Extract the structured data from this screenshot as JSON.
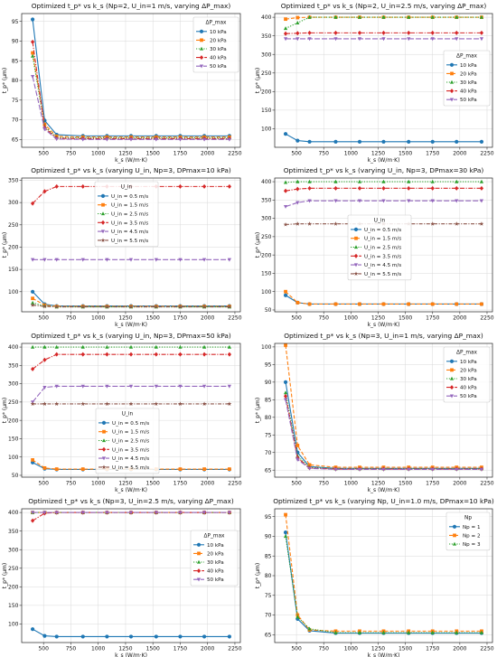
{
  "colors": {
    "blue": "#1f77b4",
    "orange": "#ff7f0e",
    "green": "#2ca02c",
    "red": "#d62728",
    "purple": "#9467bd",
    "brown": "#8c564b"
  },
  "chart_data": [
    {
      "type": "line",
      "title": "Optimized t_p* vs k_s (Np=2, U_in=1 m/s, varying ΔP_max)",
      "xlabel": "k_s (W/m·K)",
      "ylabel": "t_p* (μm)",
      "xlim": [
        300,
        2300
      ],
      "ylim": [
        63,
        97
      ],
      "xticks": [
        250,
        500,
        750,
        1000,
        1250,
        1500,
        1750,
        2000,
        2250
      ],
      "yticks": [
        65,
        70,
        75,
        80,
        85,
        90,
        95
      ],
      "grid": true,
      "legend_title": "ΔP_max",
      "legend_position": "upper-right",
      "x": [
        400,
        510,
        620,
        860,
        1080,
        1300,
        1530,
        1750,
        1970,
        2200
      ],
      "series": [
        {
          "name": "10 kPa",
          "values": [
            95.5,
            69.8,
            66.2,
            65.9,
            65.9,
            65.9,
            65.9,
            65.9,
            65.9,
            65.9
          ]
        },
        {
          "name": "20 kPa",
          "values": [
            87.0,
            68.8,
            65.8,
            65.6,
            65.6,
            65.6,
            65.6,
            65.6,
            65.6,
            65.6
          ]
        },
        {
          "name": "30 kPa",
          "values": [
            86.2,
            68.3,
            65.5,
            65.4,
            65.4,
            65.4,
            65.4,
            65.4,
            65.4,
            65.4
          ]
        },
        {
          "name": "40 kPa",
          "values": [
            89.8,
            68.0,
            65.3,
            65.2,
            65.2,
            65.2,
            65.2,
            65.2,
            65.2,
            65.2
          ]
        },
        {
          "name": "50 kPa",
          "values": [
            81.0,
            67.6,
            65.1,
            65.0,
            65.0,
            65.0,
            65.0,
            65.0,
            65.0,
            65.0
          ]
        }
      ]
    },
    {
      "type": "line",
      "title": "Optimized t_p* vs k_s (Np=2, U_in=2.5 m/s, varying ΔP_max)",
      "xlabel": "k_s (W/m·K)",
      "ylabel": "t_p* (μm)",
      "xlim": [
        300,
        2300
      ],
      "ylim": [
        50,
        410
      ],
      "xticks": [
        250,
        500,
        750,
        1000,
        1250,
        1500,
        1750,
        2000,
        2250
      ],
      "yticks": [
        100,
        150,
        200,
        250,
        300,
        350,
        400
      ],
      "grid": true,
      "legend_title": "ΔP_max",
      "legend_position": "center-right",
      "x": [
        400,
        510,
        620,
        860,
        1080,
        1300,
        1530,
        1750,
        1970,
        2200
      ],
      "series": [
        {
          "name": "10 kPa",
          "values": [
            86,
            68,
            65,
            65,
            65,
            65,
            65,
            65,
            65,
            65
          ]
        },
        {
          "name": "20 kPa",
          "values": [
            395,
            399,
            400,
            400,
            400,
            400,
            400,
            400,
            400,
            400
          ]
        },
        {
          "name": "30 kPa",
          "values": [
            370,
            385,
            400,
            400,
            400,
            400,
            400,
            400,
            400,
            400
          ]
        },
        {
          "name": "40 kPa",
          "values": [
            356,
            357,
            358,
            358,
            358,
            358,
            358,
            358,
            358,
            358
          ]
        },
        {
          "name": "50 kPa",
          "values": [
            342,
            342,
            342,
            342,
            342,
            342,
            342,
            342,
            342,
            342
          ]
        }
      ]
    },
    {
      "type": "line",
      "title": "Optimized t_p* vs k_s (varying U_in, Np=3, DPmax=10 kPa)",
      "xlabel": "k_s (W/m·K)",
      "ylabel": "t_p* (μm)",
      "xlim": [
        300,
        2300
      ],
      "ylim": [
        55,
        355
      ],
      "xticks": [
        250,
        500,
        750,
        1000,
        1250,
        1500,
        1750,
        2000,
        2250
      ],
      "yticks": [
        100,
        150,
        200,
        250,
        300,
        350
      ],
      "grid": true,
      "legend_title": "U_in",
      "legend_position": "upper-left",
      "x": [
        400,
        510,
        620,
        860,
        1080,
        1300,
        1530,
        1750,
        1970,
        2200
      ],
      "series": [
        {
          "name": "U_in = 0.5 m/s",
          "values": [
            100,
            72,
            68,
            68,
            68,
            68,
            68,
            68,
            68,
            68
          ]
        },
        {
          "name": "U_in = 1.5 m/s",
          "values": [
            85,
            70,
            67,
            67,
            67,
            67,
            67,
            67,
            67,
            67
          ]
        },
        {
          "name": "U_in = 2.5 m/s",
          "values": [
            75,
            68,
            66,
            66,
            66,
            66,
            66,
            66,
            66,
            66
          ]
        },
        {
          "name": "U_in = 3.5 m/s",
          "values": [
            298,
            325,
            336,
            336,
            336,
            336,
            336,
            336,
            336,
            336
          ]
        },
        {
          "name": "U_in = 4.5 m/s",
          "values": [
            172,
            172,
            172,
            172,
            172,
            172,
            172,
            172,
            172,
            172
          ]
        },
        {
          "name": "U_in = 5.5 m/s",
          "values": [
            70,
            67,
            66,
            66,
            66,
            66,
            66,
            66,
            66,
            66
          ]
        }
      ]
    },
    {
      "type": "line",
      "title": "Optimized t_p* vs k_s (varying U_in, Np=3, DPmax=30 kPa)",
      "xlabel": "k_s (W/m·K)",
      "ylabel": "t_p* (μm)",
      "xlim": [
        300,
        2300
      ],
      "ylim": [
        45,
        410
      ],
      "xticks": [
        250,
        500,
        750,
        1000,
        1250,
        1500,
        1750,
        2000,
        2250
      ],
      "yticks": [
        50,
        100,
        150,
        200,
        250,
        300,
        350,
        400
      ],
      "grid": true,
      "legend_title": "U_in",
      "legend_position": "center",
      "x": [
        400,
        510,
        620,
        860,
        1080,
        1300,
        1530,
        1750,
        1970,
        2200
      ],
      "series": [
        {
          "name": "U_in = 0.5 m/s",
          "values": [
            90,
            70,
            66,
            66,
            66,
            66,
            66,
            66,
            66,
            66
          ]
        },
        {
          "name": "U_in = 1.5 m/s",
          "values": [
            100,
            70,
            66,
            66,
            66,
            66,
            66,
            66,
            66,
            66
          ]
        },
        {
          "name": "U_in = 2.5 m/s",
          "values": [
            398,
            400,
            400,
            400,
            400,
            400,
            400,
            400,
            400,
            400
          ]
        },
        {
          "name": "U_in = 3.5 m/s",
          "values": [
            375,
            380,
            382,
            382,
            382,
            382,
            382,
            382,
            382,
            382
          ]
        },
        {
          "name": "U_in = 4.5 m/s",
          "values": [
            332,
            343,
            348,
            348,
            348,
            348,
            348,
            348,
            348,
            348
          ]
        },
        {
          "name": "U_in = 5.5 m/s",
          "values": [
            283,
            285,
            285,
            285,
            285,
            285,
            285,
            285,
            285,
            285
          ]
        }
      ]
    },
    {
      "type": "line",
      "title": "Optimized t_p* vs k_s (varying U_in, Np=3, DPmax=50 kPa)",
      "xlabel": "k_s (W/m·K)",
      "ylabel": "t_p* (μm)",
      "xlim": [
        300,
        2300
      ],
      "ylim": [
        45,
        410
      ],
      "xticks": [
        250,
        500,
        750,
        1000,
        1250,
        1500,
        1750,
        2000,
        2250
      ],
      "yticks": [
        50,
        100,
        150,
        200,
        250,
        300,
        350,
        400
      ],
      "grid": true,
      "legend_title": "U_in",
      "legend_position": "lower-center",
      "x": [
        400,
        510,
        620,
        860,
        1080,
        1300,
        1530,
        1750,
        1970,
        2200
      ],
      "series": [
        {
          "name": "U_in = 0.5 m/s",
          "values": [
            85,
            68,
            66,
            66,
            66,
            66,
            66,
            66,
            66,
            66
          ]
        },
        {
          "name": "U_in = 1.5 m/s",
          "values": [
            92,
            70,
            67,
            67,
            67,
            67,
            67,
            67,
            67,
            67
          ]
        },
        {
          "name": "U_in = 2.5 m/s",
          "values": [
            400,
            400,
            400,
            400,
            400,
            400,
            400,
            400,
            400,
            400
          ]
        },
        {
          "name": "U_in = 3.5 m/s",
          "values": [
            340,
            365,
            380,
            380,
            380,
            380,
            380,
            380,
            380,
            380
          ]
        },
        {
          "name": "U_in = 4.5 m/s",
          "values": [
            250,
            290,
            293,
            293,
            293,
            293,
            293,
            293,
            293,
            293
          ]
        },
        {
          "name": "U_in = 5.5 m/s",
          "values": [
            245,
            245,
            245,
            245,
            245,
            245,
            245,
            245,
            245,
            245
          ]
        }
      ]
    },
    {
      "type": "line",
      "title": "Optimized t_p* vs k_s (Np=3, U_in=1 m/s, varying ΔP_max)",
      "xlabel": "k_s (W/m·K)",
      "ylabel": "t_p* (μm)",
      "xlim": [
        300,
        2300
      ],
      "ylim": [
        63,
        101
      ],
      "xticks": [
        250,
        500,
        750,
        1000,
        1250,
        1500,
        1750,
        2000,
        2250
      ],
      "yticks": [
        65,
        70,
        75,
        80,
        85,
        90,
        95,
        100
      ],
      "grid": true,
      "legend_title": "ΔP_max",
      "legend_position": "upper-right",
      "x": [
        400,
        510,
        620,
        860,
        1080,
        1300,
        1530,
        1750,
        1970,
        2200
      ],
      "series": [
        {
          "name": "10 kPa",
          "values": [
            90,
            70,
            66,
            65.5,
            65.5,
            65.5,
            65.5,
            65.5,
            65.5,
            65.5
          ]
        },
        {
          "name": "20 kPa",
          "values": [
            100.5,
            72,
            66.5,
            65.8,
            65.8,
            65.8,
            65.8,
            65.8,
            65.8,
            65.8
          ]
        },
        {
          "name": "30 kPa",
          "values": [
            87,
            69,
            65.8,
            65.4,
            65.4,
            65.4,
            65.4,
            65.4,
            65.4,
            65.4
          ]
        },
        {
          "name": "40 kPa",
          "values": [
            86,
            68.5,
            65.6,
            65.3,
            65.3,
            65.3,
            65.3,
            65.3,
            65.3,
            65.3
          ]
        },
        {
          "name": "50 kPa",
          "values": [
            85,
            68,
            65.5,
            65.2,
            65.2,
            65.2,
            65.2,
            65.2,
            65.2,
            65.2
          ]
        }
      ]
    },
    {
      "type": "line",
      "title": "Optimized t_p* vs k_s (Np=3, U_in=2.5 m/s, varying ΔP_max)",
      "xlabel": "k_s (W/m·K)",
      "ylabel": "t_p* (μm)",
      "xlim": [
        300,
        2300
      ],
      "ylim": [
        50,
        410
      ],
      "xticks": [
        250,
        500,
        750,
        1000,
        1250,
        1500,
        1750,
        2000,
        2250
      ],
      "yticks": [
        100,
        150,
        200,
        250,
        300,
        350,
        400
      ],
      "grid": true,
      "legend_title": "ΔP_max",
      "legend_position": "center-right",
      "x": [
        400,
        510,
        620,
        860,
        1080,
        1300,
        1530,
        1750,
        1970,
        2200
      ],
      "series": [
        {
          "name": "10 kPa",
          "values": [
            86,
            68,
            66,
            66,
            66,
            66,
            66,
            66,
            66,
            66
          ]
        },
        {
          "name": "20 kPa",
          "values": [
            400,
            400,
            400,
            400,
            400,
            400,
            400,
            400,
            400,
            400
          ]
        },
        {
          "name": "30 kPa",
          "values": [
            400,
            400,
            400,
            400,
            400,
            400,
            400,
            400,
            400,
            400
          ]
        },
        {
          "name": "40 kPa",
          "values": [
            378,
            398,
            400,
            400,
            400,
            400,
            400,
            400,
            400,
            400
          ]
        },
        {
          "name": "50 kPa",
          "values": [
            400,
            400,
            400,
            400,
            400,
            400,
            400,
            400,
            400,
            400
          ]
        }
      ]
    },
    {
      "type": "line",
      "title": "Optimized t_p* vs k_s (varying Np, U_in=1.0 m/s, DPmax=10 kPa)",
      "xlabel": "k_s (W/m·K)",
      "ylabel": "t_p* (μm)",
      "xlim": [
        300,
        2300
      ],
      "ylim": [
        63,
        97
      ],
      "xticks": [
        250,
        500,
        750,
        1000,
        1250,
        1500,
        1750,
        2000,
        2250
      ],
      "yticks": [
        65,
        70,
        75,
        80,
        85,
        90,
        95
      ],
      "grid": true,
      "legend_title": "Np",
      "legend_position": "upper-right",
      "x": [
        400,
        510,
        620,
        860,
        1080,
        1300,
        1530,
        1750,
        1970,
        2200
      ],
      "series": [
        {
          "name": "Np = 1",
          "values": [
            91,
            69,
            66,
            65.4,
            65.4,
            65.4,
            65.4,
            65.4,
            65.4,
            65.4
          ]
        },
        {
          "name": "Np = 2",
          "values": [
            95.5,
            70,
            66.2,
            65.9,
            65.9,
            65.9,
            65.9,
            65.9,
            65.9,
            65.9
          ]
        },
        {
          "name": "Np = 3",
          "values": [
            90,
            69.5,
            66.5,
            65.5,
            65.5,
            65.5,
            65.5,
            65.5,
            65.5,
            65.5
          ]
        }
      ]
    }
  ]
}
